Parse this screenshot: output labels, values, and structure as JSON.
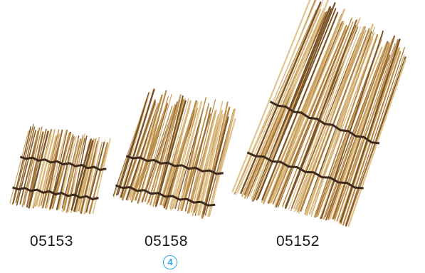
{
  "products": [
    {
      "code": "05153"
    },
    {
      "code": "05158"
    },
    {
      "code": "05152"
    }
  ],
  "badge": "4",
  "colors": {
    "reed_light": "#d9b67a",
    "reed_mid": "#b88a48",
    "reed_dark": "#7a5326",
    "binding": "#3d2a1c",
    "badge": "#2aa7df"
  }
}
